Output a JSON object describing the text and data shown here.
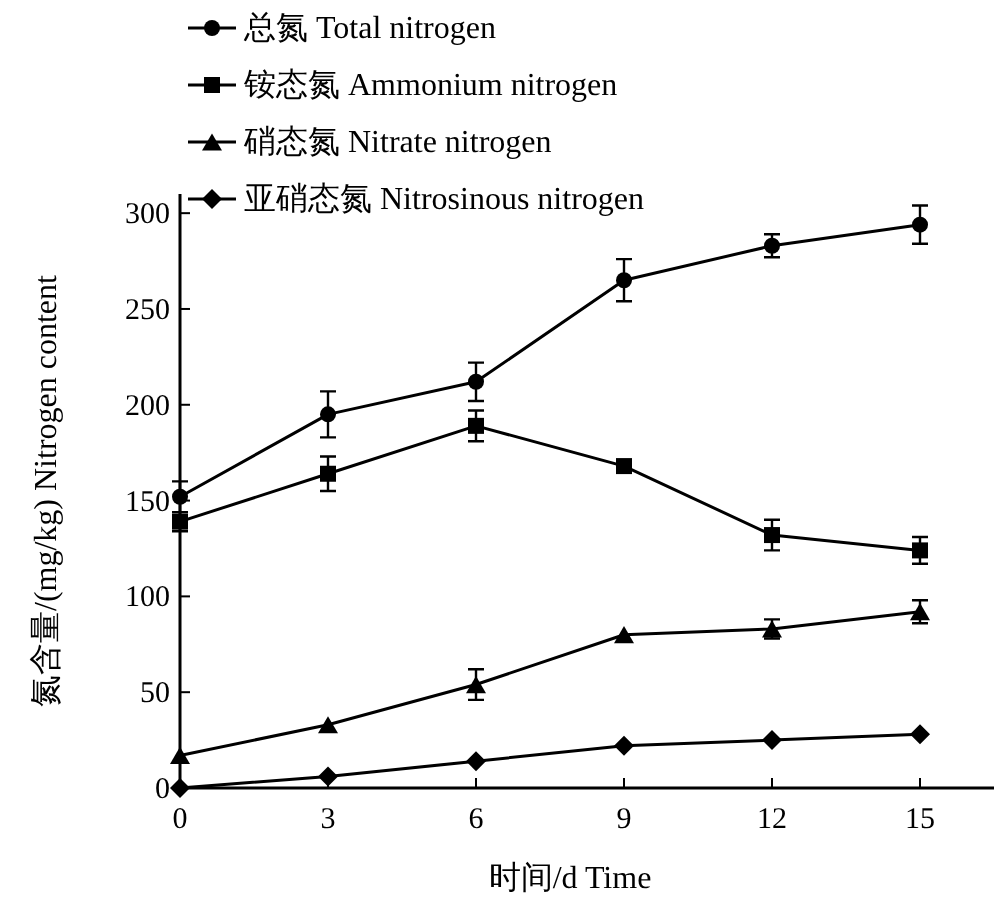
{
  "chart_data": {
    "type": "line",
    "xlabel": "时间/d Time",
    "ylabel": "氮含量/(mg/kg)  Nitrogen content",
    "x": [
      0,
      3,
      6,
      9,
      12,
      15
    ],
    "xlim": [
      0,
      16.5
    ],
    "xticks": [
      0,
      3,
      6,
      9,
      12,
      15
    ],
    "ylim": [
      0,
      310
    ],
    "yticks": [
      0,
      50,
      100,
      150,
      200,
      250,
      300
    ],
    "grid": false,
    "legend": "top left",
    "line_style": "solid",
    "series": [
      {
        "name": "总氮 Total nitrogen",
        "color": "#000000",
        "marker": "circle",
        "values": [
          152,
          195,
          212,
          265,
          283,
          294
        ],
        "errors": [
          8,
          12,
          10,
          11,
          6,
          10
        ]
      },
      {
        "name": "铵态氮 Ammonium nitrogen",
        "color": "#000000",
        "marker": "square",
        "values": [
          139,
          164,
          189,
          168,
          132,
          124
        ],
        "errors": [
          5,
          9,
          8,
          null,
          8,
          7
        ]
      },
      {
        "name": "硝态氮 Nitrate nitrogen",
        "color": "#000000",
        "marker": "triangle",
        "values": [
          17,
          33,
          54,
          80,
          83,
          92
        ],
        "errors": [
          null,
          null,
          8,
          null,
          5,
          6
        ]
      },
      {
        "name": "亚硝态氮 Nitrosinous nitrogen",
        "color": "#000000",
        "marker": "diamond",
        "values": [
          0,
          6,
          14,
          22,
          25,
          28
        ],
        "errors": [
          null,
          null,
          null,
          null,
          null,
          null
        ]
      }
    ]
  }
}
